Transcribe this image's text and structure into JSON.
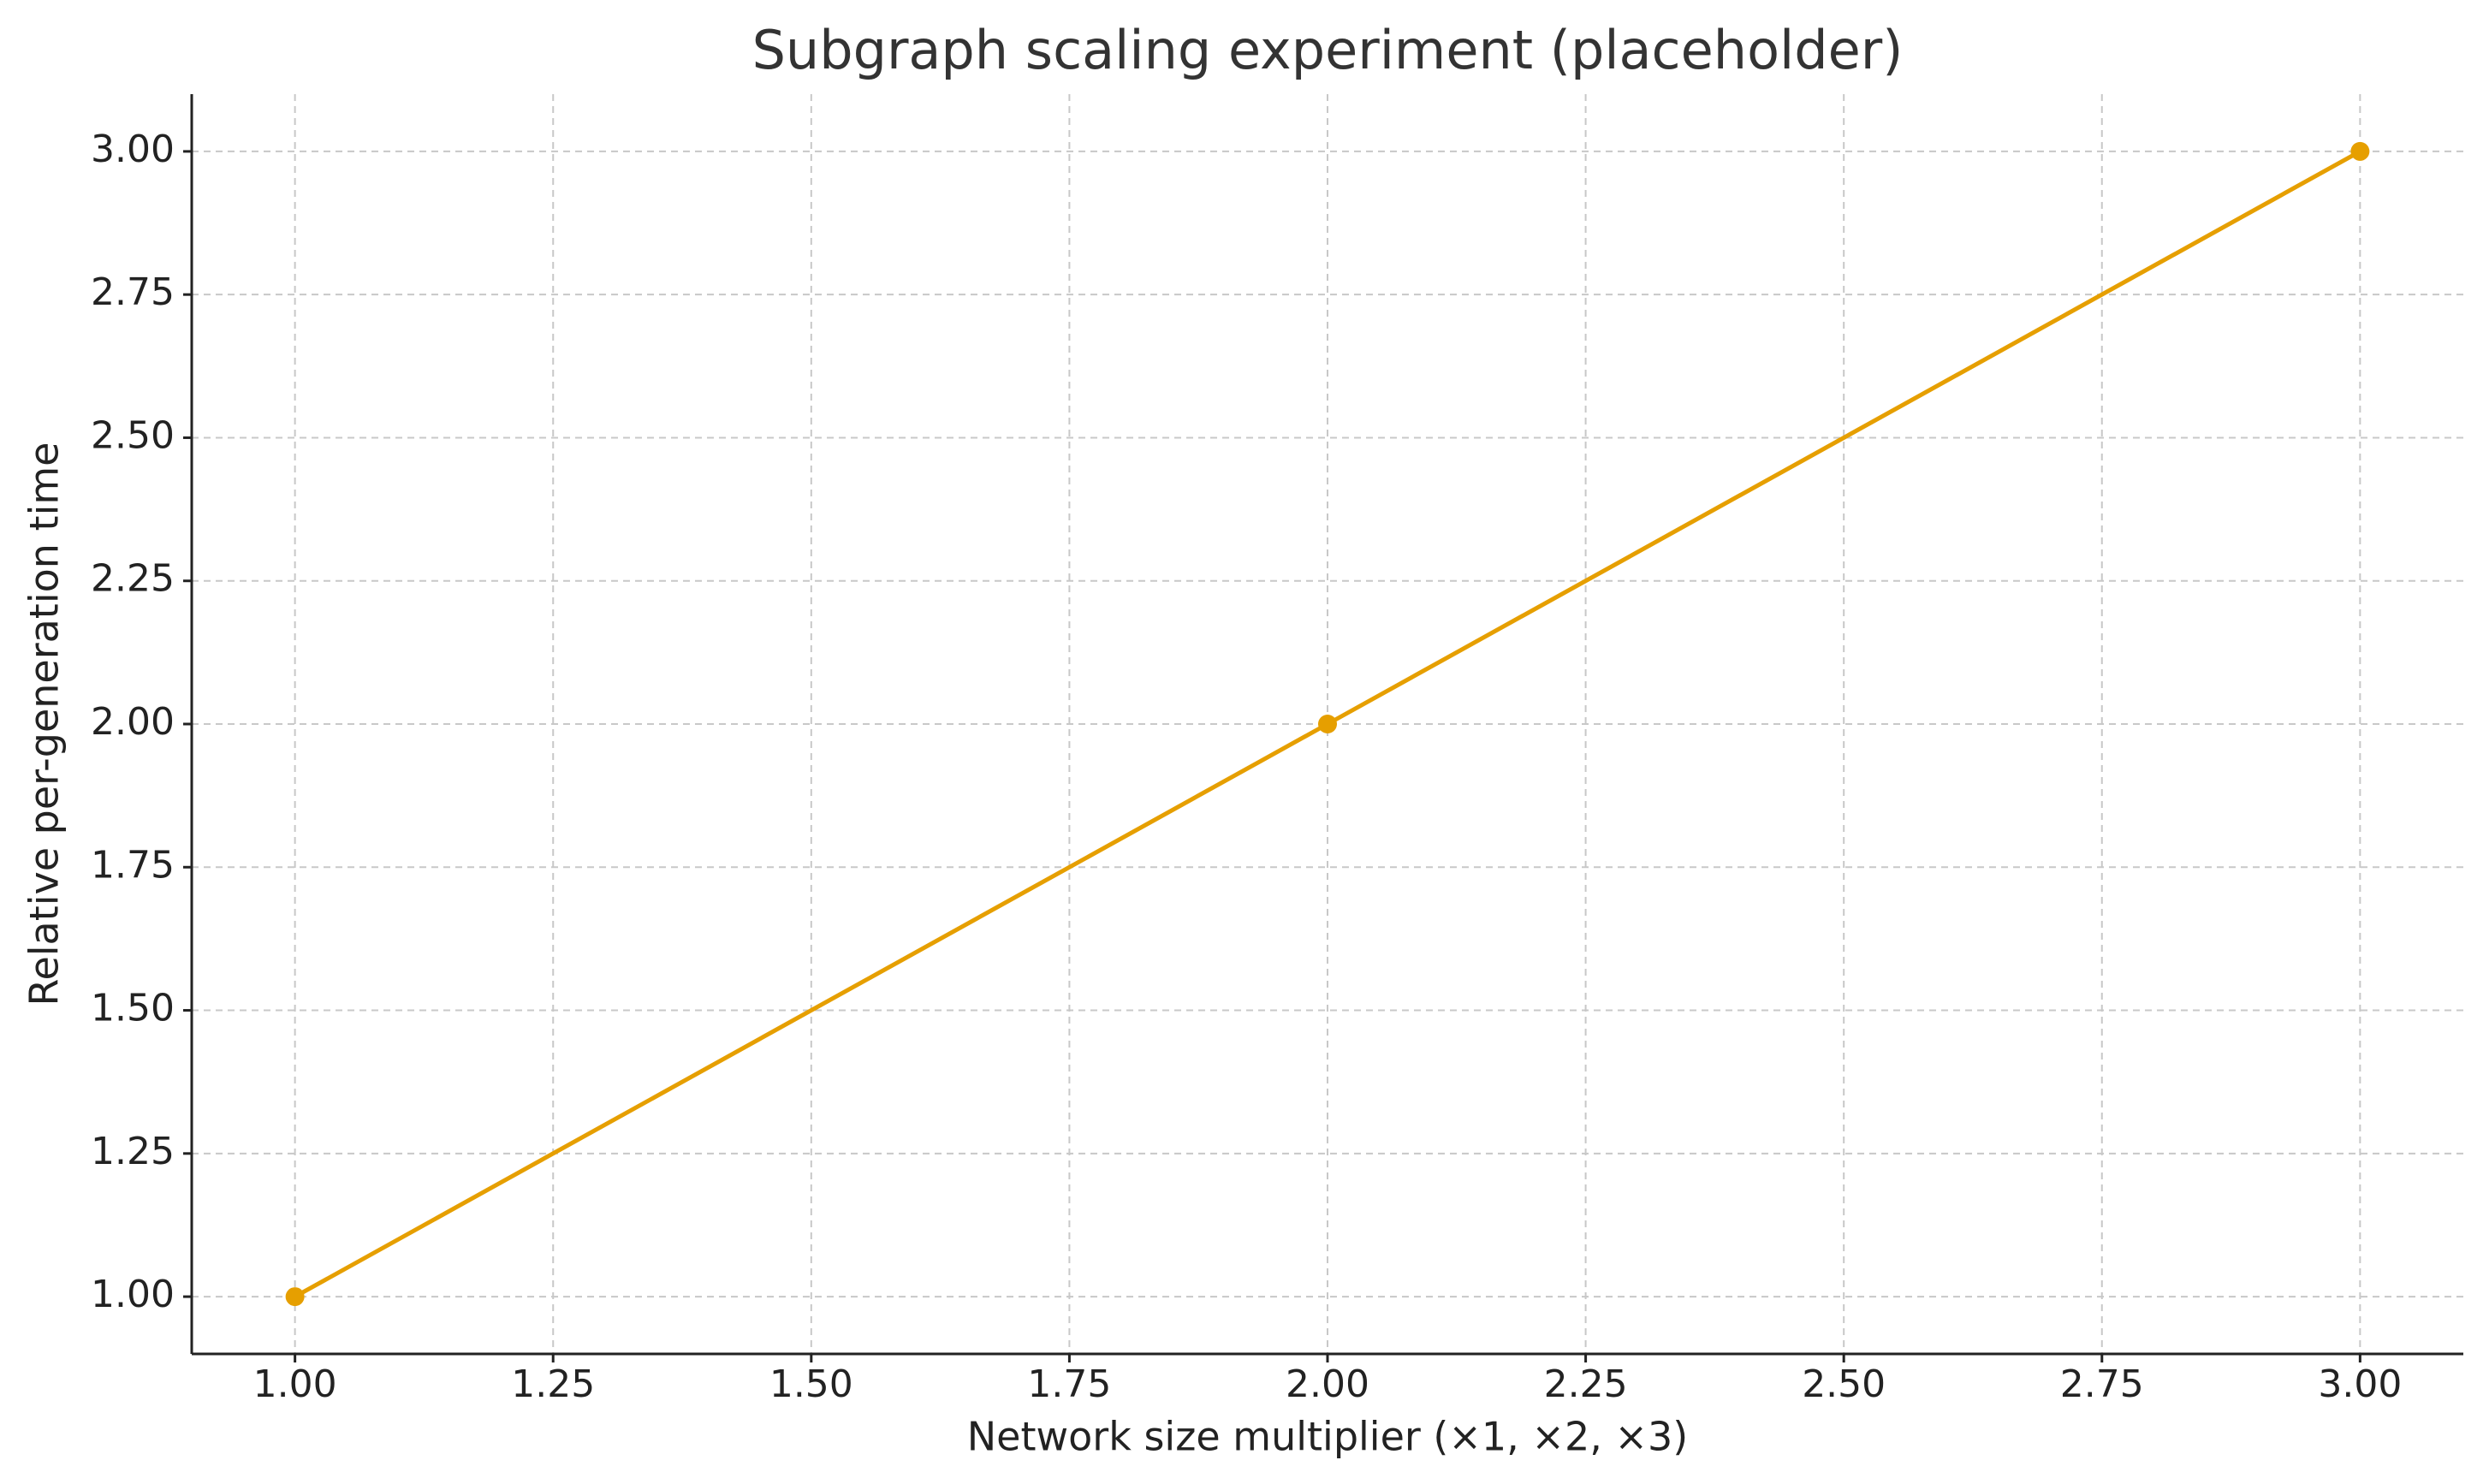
{
  "chart_data": {
    "type": "line",
    "title": "Subgraph scaling experiment (placeholder)",
    "x_label": "Network size multiplier (×1, ×2, ×3)",
    "y_label": "Relative per-generation time",
    "x": [
      1,
      2,
      3
    ],
    "values": [
      1,
      2,
      3
    ],
    "color": "#e69f00",
    "markers": true,
    "grid": true,
    "xlim": [
      0.9,
      3.1
    ],
    "ylim": [
      0.9,
      3.1
    ],
    "xticks": [
      {
        "value": 1,
        "label": "1.00"
      },
      {
        "value": 1.25,
        "label": "1.25"
      },
      {
        "value": 1.5,
        "label": "1.50"
      },
      {
        "value": 1.75,
        "label": "1.75"
      },
      {
        "value": 2,
        "label": "2.00"
      },
      {
        "value": 2.25,
        "label": "2.25"
      },
      {
        "value": 2.5,
        "label": "2.50"
      },
      {
        "value": 2.75,
        "label": "2.75"
      },
      {
        "value": 3,
        "label": "3.00"
      }
    ],
    "yticks": [
      {
        "value": 1,
        "label": "1.00"
      },
      {
        "value": 1.25,
        "label": "1.25"
      },
      {
        "value": 1.5,
        "label": "1.50"
      },
      {
        "value": 1.75,
        "label": "1.75"
      },
      {
        "value": 2,
        "label": "2.00"
      },
      {
        "value": 2.25,
        "label": "2.25"
      },
      {
        "value": 2.5,
        "label": "2.50"
      },
      {
        "value": 2.75,
        "label": "2.75"
      },
      {
        "value": 3,
        "label": "3.00"
      }
    ]
  }
}
